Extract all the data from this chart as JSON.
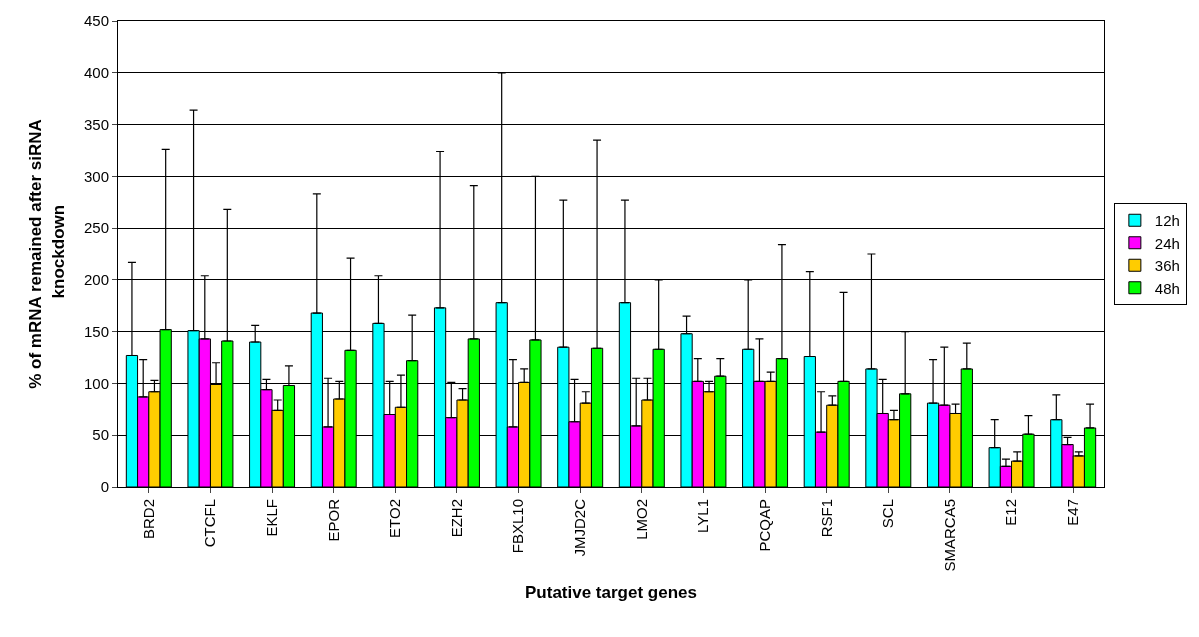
{
  "chart_data": {
    "type": "bar",
    "xlabel": "Putative target genes",
    "ylabel": "% of mRNA remained after siRNA knockdown",
    "categories": [
      "BRD2",
      "CTCFL",
      "EKLF",
      "EPOR",
      "ETO2",
      "EZH2",
      "FBXL10",
      "JMJD2C",
      "LMO2",
      "LYL1",
      "PCQAP",
      "RSF1",
      "SCL",
      "SMARCA5",
      "E12",
      "E47"
    ],
    "series": [
      {
        "name": "12h",
        "color": "#00ffff",
        "values": [
          127,
          151,
          140,
          168,
          158,
          173,
          178,
          135,
          178,
          148,
          133,
          126,
          114,
          81,
          38,
          65
        ],
        "errors": [
          [
            127,
            217
          ],
          [
            151,
            364
          ],
          [
            140,
            156
          ],
          [
            168,
            283
          ],
          [
            158,
            204
          ],
          [
            173,
            324
          ],
          [
            178,
            400
          ],
          [
            135,
            277
          ],
          [
            178,
            277
          ],
          [
            148,
            165
          ],
          [
            133,
            200
          ],
          [
            126,
            208
          ],
          [
            114,
            225
          ],
          [
            81,
            123
          ],
          [
            38,
            65
          ],
          [
            65,
            89
          ]
        ]
      },
      {
        "name": "24h",
        "color": "#ff00ff",
        "values": [
          87,
          143,
          94,
          58,
          70,
          67,
          58,
          63,
          59,
          102,
          102,
          53,
          71,
          79,
          20,
          41
        ],
        "errors": [
          [
            87,
            123
          ],
          [
            143,
            204
          ],
          [
            94,
            104
          ],
          [
            58,
            105
          ],
          [
            70,
            102
          ],
          [
            67,
            101
          ],
          [
            58,
            123
          ],
          [
            63,
            104
          ],
          [
            59,
            105
          ],
          [
            102,
            124
          ],
          [
            102,
            143
          ],
          [
            53,
            92
          ],
          [
            71,
            104
          ],
          [
            79,
            135
          ],
          [
            20,
            27
          ],
          [
            41,
            48
          ]
        ]
      },
      {
        "name": "36h",
        "color": "#ffcc00",
        "values": [
          92,
          99,
          74,
          85,
          77,
          84,
          101,
          81,
          84,
          92,
          102,
          79,
          65,
          71,
          25,
          30
        ],
        "errors": [
          [
            92,
            103
          ],
          [
            99,
            120
          ],
          [
            74,
            84
          ],
          [
            85,
            102
          ],
          [
            77,
            108
          ],
          [
            84,
            95
          ],
          [
            101,
            114
          ],
          [
            81,
            92
          ],
          [
            84,
            105
          ],
          [
            92,
            102
          ],
          [
            102,
            111
          ],
          [
            79,
            88
          ],
          [
            65,
            74
          ],
          [
            71,
            80
          ],
          [
            25,
            34
          ],
          [
            30,
            34
          ]
        ]
      },
      {
        "name": "48h",
        "color": "#00ff00",
        "values": [
          152,
          141,
          98,
          132,
          122,
          143,
          142,
          134,
          133,
          107,
          124,
          102,
          90,
          114,
          51,
          57
        ],
        "errors": [
          [
            152,
            326
          ],
          [
            141,
            268
          ],
          [
            98,
            117
          ],
          [
            132,
            221
          ],
          [
            122,
            166
          ],
          [
            143,
            291
          ],
          [
            142,
            300
          ],
          [
            134,
            335
          ],
          [
            133,
            200
          ],
          [
            107,
            124
          ],
          [
            124,
            234
          ],
          [
            102,
            188
          ],
          [
            90,
            150
          ],
          [
            114,
            139
          ],
          [
            51,
            69
          ],
          [
            57,
            80
          ]
        ]
      }
    ],
    "ylim": [
      0,
      450
    ],
    "yticks": [
      0,
      50,
      100,
      150,
      200,
      250,
      300,
      350,
      400,
      450
    ],
    "grid": "y",
    "legend": "right"
  }
}
